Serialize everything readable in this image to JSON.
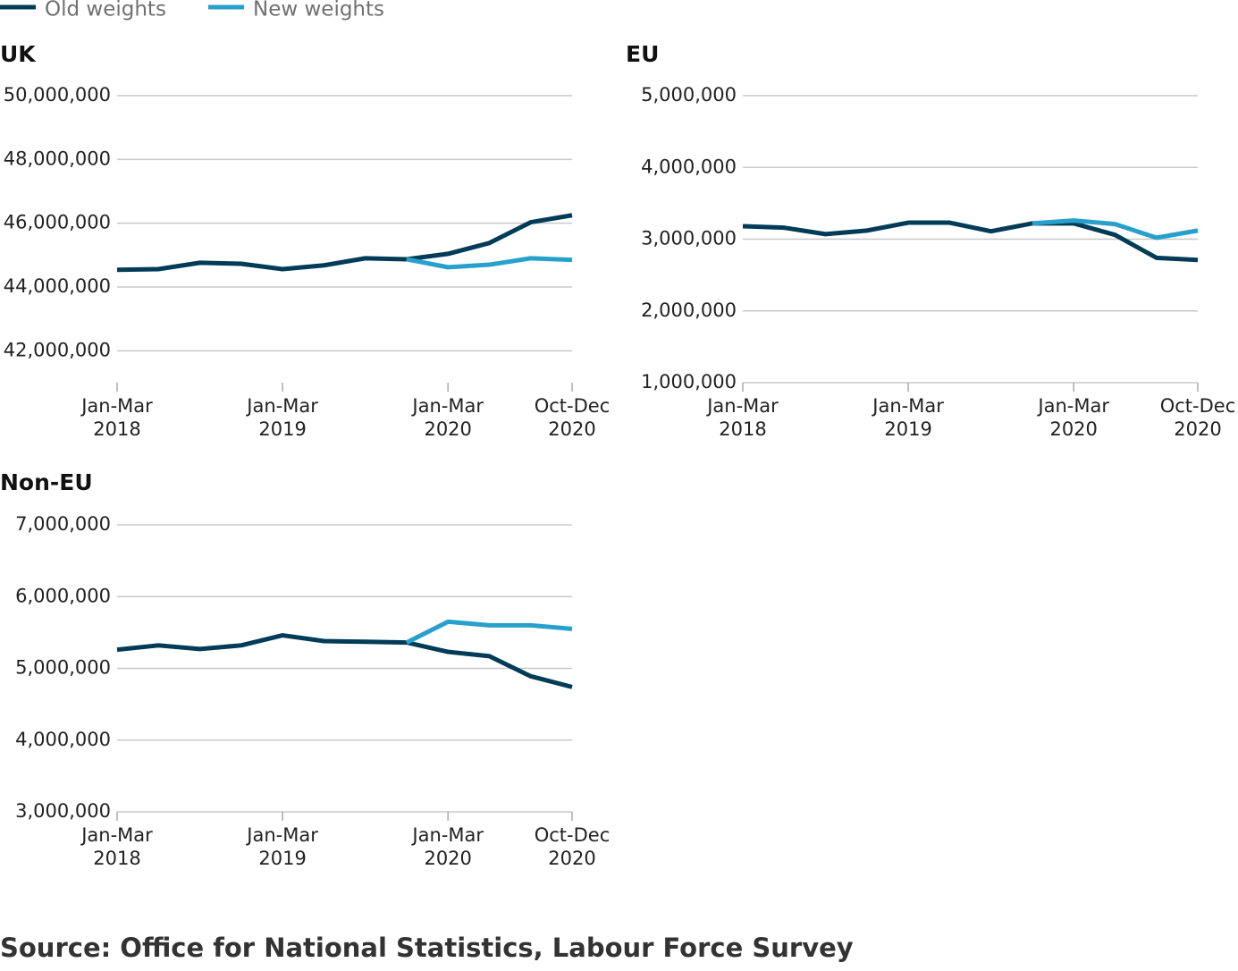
{
  "legend": [
    {
      "name": "Old weights",
      "color": "#003c57"
    },
    {
      "name": "New weights",
      "color": "#27a0cc"
    }
  ],
  "source": "Source: Office for National Statistics, Labour Force Survey",
  "chart_data": [
    {
      "type": "line",
      "title": "UK",
      "categories": [
        "Jan-Mar 2018",
        null,
        null,
        null,
        "Jan-Mar 2019",
        null,
        null,
        null,
        "Jan-Mar 2020",
        null,
        null,
        "Oct-Dec 2020"
      ],
      "series": [
        {
          "values": [
            44540000,
            44560000,
            44760000,
            44730000,
            44560000,
            44680000,
            44900000,
            44870000,
            45040000,
            45380000,
            46030000,
            46250000
          ]
        },
        {
          "values": [
            null,
            null,
            null,
            null,
            null,
            null,
            null,
            44870000,
            44620000,
            44700000,
            44900000,
            44850000
          ]
        }
      ],
      "ylim": [
        41000000,
        50000000
      ],
      "yticks": [
        {
          "value": 42000000,
          "label": "42,000,000"
        },
        {
          "value": 44000000,
          "label": "44,000,000"
        },
        {
          "value": 46000000,
          "label": "46,000,000"
        },
        {
          "value": 48000000,
          "label": "48,000,000"
        },
        {
          "value": 50000000,
          "label": "50,000,000"
        }
      ],
      "grid": true
    },
    {
      "type": "line",
      "title": "EU",
      "categories": [
        "Jan-Mar 2018",
        null,
        null,
        null,
        "Jan-Mar 2019",
        null,
        null,
        null,
        "Jan-Mar 2020",
        null,
        null,
        "Oct-Dec 2020"
      ],
      "series": [
        {
          "values": [
            3180000,
            3160000,
            3070000,
            3120000,
            3230000,
            3230000,
            3110000,
            3220000,
            3220000,
            3060000,
            2740000,
            2710000
          ]
        },
        {
          "values": [
            null,
            null,
            null,
            null,
            null,
            null,
            null,
            3220000,
            3260000,
            3210000,
            3020000,
            3120000
          ]
        }
      ],
      "ylim": [
        1000000,
        5000000
      ],
      "yticks": [
        {
          "value": 1000000,
          "label": "1,000,000"
        },
        {
          "value": 2000000,
          "label": "2,000,000"
        },
        {
          "value": 3000000,
          "label": "3,000,000"
        },
        {
          "value": 4000000,
          "label": "4,000,000"
        },
        {
          "value": 5000000,
          "label": "5,000,000"
        }
      ],
      "grid": true
    },
    {
      "type": "line",
      "title": "Non-EU",
      "categories": [
        "Jan-Mar 2018",
        null,
        null,
        null,
        "Jan-Mar 2019",
        null,
        null,
        null,
        "Jan-Mar 2020",
        null,
        null,
        "Oct-Dec 2020"
      ],
      "series": [
        {
          "values": [
            5260000,
            5320000,
            5270000,
            5320000,
            5460000,
            5380000,
            5370000,
            5360000,
            5230000,
            5170000,
            4890000,
            4740000
          ]
        },
        {
          "values": [
            null,
            null,
            null,
            null,
            null,
            null,
            null,
            5360000,
            5650000,
            5600000,
            5600000,
            5550000
          ]
        }
      ],
      "ylim": [
        3000000,
        7000000
      ],
      "yticks": [
        {
          "value": 3000000,
          "label": "3,000,000"
        },
        {
          "value": 4000000,
          "label": "4,000,000"
        },
        {
          "value": 5000000,
          "label": "5,000,000"
        },
        {
          "value": 6000000,
          "label": "6,000,000"
        },
        {
          "value": 7000000,
          "label": "7,000,000"
        }
      ],
      "grid": true
    }
  ]
}
